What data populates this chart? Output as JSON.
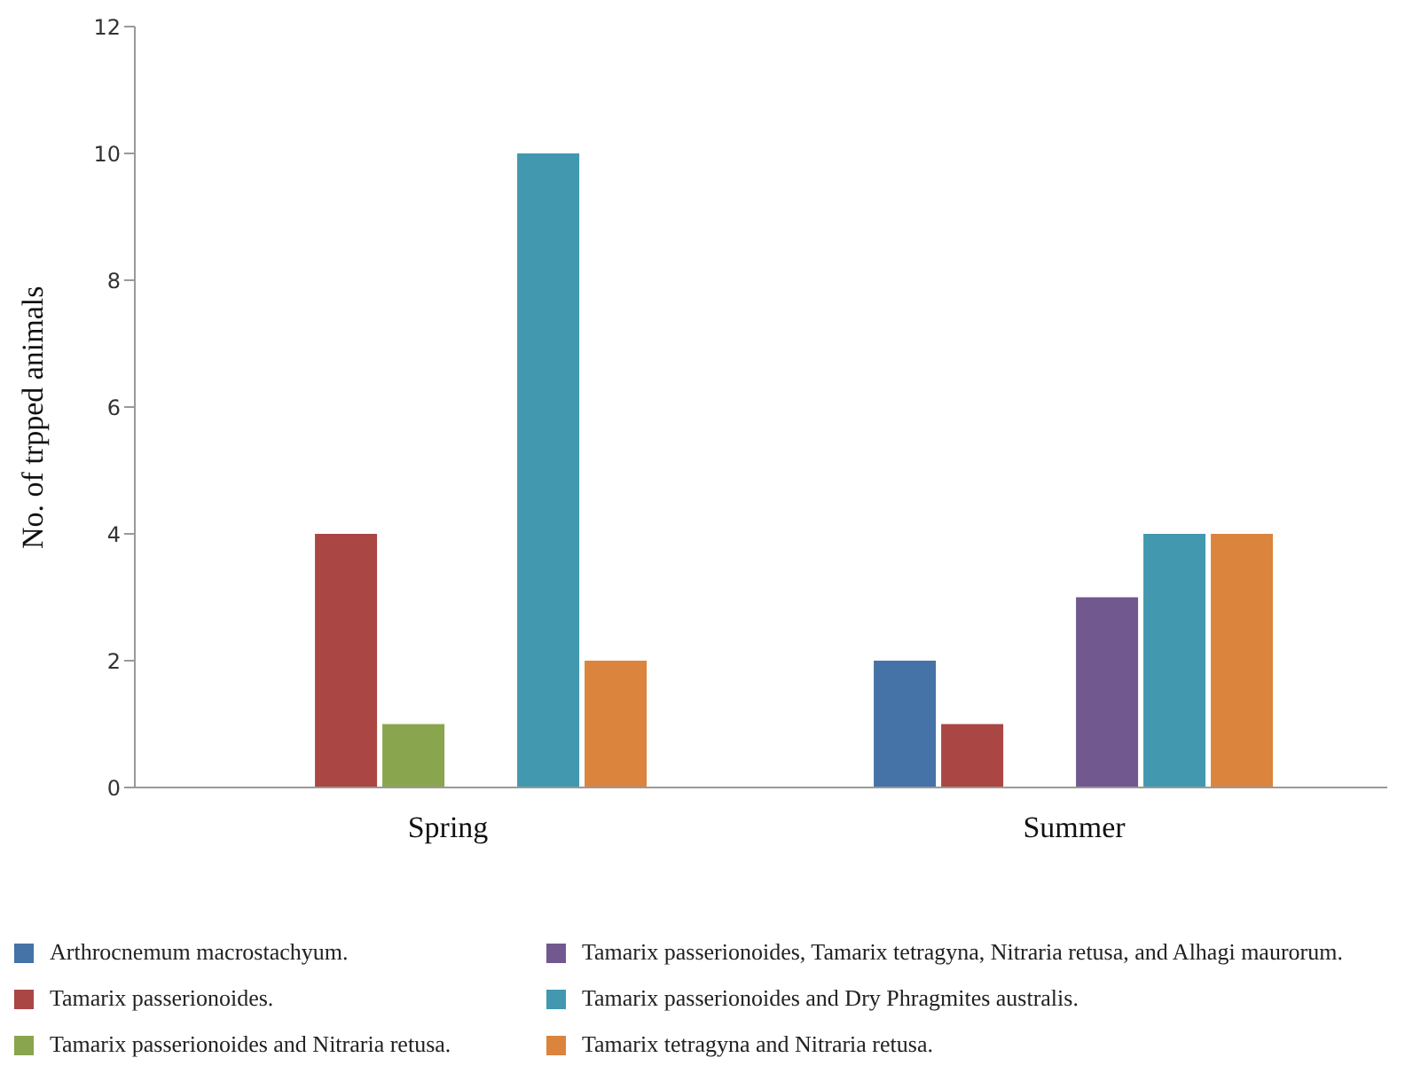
{
  "chart_data": {
    "type": "bar",
    "ylabel": "No. of trpped animals",
    "categories": [
      "Spring",
      "Summer"
    ],
    "series": [
      {
        "name": "Arthrocnemum macrostachyum.",
        "color": "#4572a7",
        "values": [
          0,
          2
        ]
      },
      {
        "name": "Tamarix passerionoides.",
        "color": "#aa4643",
        "values": [
          4,
          1
        ]
      },
      {
        "name": "Tamarix passerionoides and Nitraria retusa.",
        "color": "#89a54e",
        "values": [
          1,
          0
        ]
      },
      {
        "name": "Tamarix passerionoides, Tamarix tetragyna, Nitraria retusa, and Alhagi maurorum.",
        "color": "#71588f",
        "values": [
          0,
          3
        ]
      },
      {
        "name": "Tamarix passerionoides and Dry Phragmites australis.",
        "color": "#4198af",
        "values": [
          10,
          4
        ]
      },
      {
        "name": "Tamarix tetragyna and Nitraria retusa.",
        "color": "#db843d",
        "values": [
          2,
          4
        ]
      }
    ],
    "ylim": [
      0,
      12
    ],
    "yticks": [
      0,
      2,
      4,
      6,
      8,
      10,
      12
    ],
    "grid": false,
    "legend": "bottom"
  }
}
